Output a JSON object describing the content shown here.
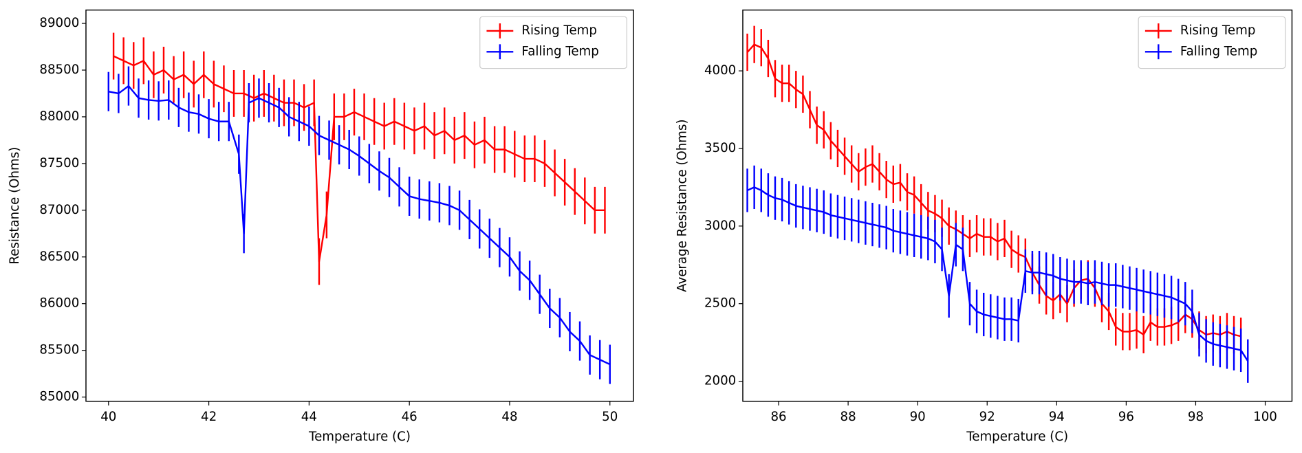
{
  "chart_data": [
    {
      "type": "errorbar_line",
      "xlabel": "Temperature (C)",
      "ylabel": "Resistance (Ohms)",
      "xlim": [
        39.55,
        50.47
      ],
      "ylim": [
        84955,
        89143
      ],
      "xticks": [
        40,
        42,
        44,
        46,
        48,
        50
      ],
      "yticks": [
        85000,
        85500,
        86000,
        86500,
        87000,
        87500,
        88000,
        88500,
        89000
      ],
      "legend": "upper right",
      "series": [
        {
          "name": "Rising Temp",
          "color": "#ff0000",
          "error": 250,
          "x": [
            40.1,
            40.3,
            40.5,
            40.7,
            40.9,
            41.1,
            41.3,
            41.5,
            41.7,
            41.9,
            42.1,
            42.3,
            42.5,
            42.7,
            42.9,
            43.1,
            43.3,
            43.5,
            43.7,
            43.9,
            44.1,
            44.2,
            44.35,
            44.5,
            44.7,
            44.9,
            45.1,
            45.3,
            45.5,
            45.7,
            45.9,
            46.1,
            46.3,
            46.5,
            46.7,
            46.9,
            47.1,
            47.3,
            47.5,
            47.7,
            47.9,
            48.1,
            48.3,
            48.5,
            48.7,
            48.9,
            49.1,
            49.3,
            49.5,
            49.7,
            49.9
          ],
          "values": [
            88650,
            88600,
            88550,
            88600,
            88450,
            88500,
            88400,
            88450,
            88350,
            88450,
            88350,
            88300,
            88250,
            88250,
            88200,
            88250,
            88200,
            88150,
            88150,
            88100,
            88150,
            86450,
            86950,
            88000,
            88000,
            88050,
            88000,
            87950,
            87900,
            87950,
            87900,
            87850,
            87900,
            87800,
            87850,
            87750,
            87800,
            87700,
            87750,
            87650,
            87650,
            87600,
            87550,
            87550,
            87500,
            87400,
            87300,
            87200,
            87100,
            87000,
            87000
          ]
        },
        {
          "name": "Falling Temp",
          "color": "#0000ff",
          "error": 210,
          "x": [
            40.0,
            40.2,
            40.4,
            40.6,
            40.8,
            41.0,
            41.2,
            41.4,
            41.6,
            41.8,
            42.0,
            42.2,
            42.4,
            42.6,
            42.7,
            42.8,
            43.0,
            43.2,
            43.4,
            43.6,
            43.8,
            44.0,
            44.2,
            44.4,
            44.6,
            44.8,
            45.0,
            45.2,
            45.4,
            45.6,
            45.8,
            46.0,
            46.2,
            46.4,
            46.6,
            46.8,
            47.0,
            47.2,
            47.4,
            47.6,
            47.8,
            48.0,
            48.2,
            48.4,
            48.6,
            48.8,
            49.0,
            49.2,
            49.4,
            49.6,
            49.8,
            50.0
          ],
          "values": [
            88270,
            88250,
            88330,
            88200,
            88180,
            88170,
            88180,
            88100,
            88050,
            88030,
            87980,
            87950,
            87950,
            87600,
            86750,
            88150,
            88200,
            88150,
            88100,
            88000,
            87950,
            87900,
            87800,
            87750,
            87700,
            87650,
            87580,
            87500,
            87420,
            87350,
            87250,
            87150,
            87120,
            87100,
            87080,
            87050,
            87000,
            86900,
            86800,
            86700,
            86600,
            86500,
            86350,
            86250,
            86100,
            85950,
            85850,
            85700,
            85600,
            85450,
            85400,
            85350
          ]
        }
      ]
    },
    {
      "type": "errorbar_line",
      "xlabel": "Temperature (C)",
      "ylabel": "Average Resistance (Ohms)",
      "xlim": [
        84.97,
        100.77
      ],
      "ylim": [
        1871,
        4392
      ],
      "xticks": [
        86,
        88,
        90,
        92,
        94,
        96,
        98,
        100
      ],
      "yticks": [
        2000,
        2500,
        3000,
        3500,
        4000
      ],
      "legend": "upper right",
      "series": [
        {
          "name": "Rising Temp",
          "color": "#ff0000",
          "error": 120,
          "x": [
            85.1,
            85.3,
            85.5,
            85.7,
            85.9,
            86.1,
            86.3,
            86.5,
            86.7,
            86.9,
            87.1,
            87.3,
            87.5,
            87.7,
            87.9,
            88.1,
            88.3,
            88.5,
            88.7,
            88.9,
            89.1,
            89.3,
            89.5,
            89.7,
            89.9,
            90.1,
            90.3,
            90.5,
            90.7,
            90.9,
            91.1,
            91.3,
            91.5,
            91.7,
            91.9,
            92.1,
            92.3,
            92.5,
            92.7,
            92.9,
            93.1,
            93.3,
            93.5,
            93.7,
            93.9,
            94.1,
            94.3,
            94.5,
            94.7,
            94.9,
            95.1,
            95.3,
            95.5,
            95.7,
            95.9,
            96.1,
            96.3,
            96.5,
            96.7,
            96.9,
            97.1,
            97.3,
            97.5,
            97.7,
            97.9,
            98.1,
            98.3,
            98.5,
            98.7,
            98.9,
            99.1,
            99.3
          ],
          "values": [
            4120,
            4170,
            4150,
            4080,
            3950,
            3920,
            3920,
            3880,
            3850,
            3750,
            3650,
            3620,
            3550,
            3500,
            3450,
            3400,
            3350,
            3380,
            3400,
            3350,
            3300,
            3270,
            3280,
            3220,
            3200,
            3150,
            3100,
            3080,
            3050,
            3000,
            2980,
            2950,
            2920,
            2950,
            2930,
            2930,
            2900,
            2920,
            2850,
            2820,
            2800,
            2700,
            2620,
            2550,
            2520,
            2560,
            2500,
            2600,
            2650,
            2660,
            2600,
            2500,
            2450,
            2350,
            2320,
            2320,
            2330,
            2300,
            2380,
            2350,
            2350,
            2360,
            2380,
            2430,
            2400,
            2330,
            2300,
            2310,
            2300,
            2320,
            2300,
            2290
          ]
        },
        {
          "name": "Falling Temp",
          "color": "#0000ff",
          "error": 140,
          "x": [
            85.1,
            85.3,
            85.5,
            85.7,
            85.9,
            86.1,
            86.3,
            86.5,
            86.7,
            86.9,
            87.1,
            87.3,
            87.5,
            87.7,
            87.9,
            88.1,
            88.3,
            88.5,
            88.7,
            88.9,
            89.1,
            89.3,
            89.5,
            89.7,
            89.9,
            90.1,
            90.3,
            90.5,
            90.7,
            90.9,
            91.1,
            91.3,
            91.5,
            91.7,
            91.9,
            92.1,
            92.3,
            92.5,
            92.7,
            92.9,
            93.1,
            93.3,
            93.5,
            93.7,
            93.9,
            94.1,
            94.3,
            94.5,
            94.7,
            94.9,
            95.1,
            95.3,
            95.5,
            95.7,
            95.9,
            96.1,
            96.3,
            96.5,
            96.7,
            96.9,
            97.1,
            97.3,
            97.5,
            97.7,
            97.9,
            98.1,
            98.3,
            98.5,
            98.7,
            98.9,
            99.1,
            99.3,
            99.5
          ],
          "values": [
            3230,
            3250,
            3230,
            3200,
            3180,
            3170,
            3150,
            3130,
            3120,
            3110,
            3100,
            3090,
            3070,
            3060,
            3050,
            3040,
            3030,
            3020,
            3010,
            3000,
            2990,
            2970,
            2960,
            2950,
            2940,
            2930,
            2920,
            2900,
            2850,
            2550,
            2880,
            2850,
            2500,
            2450,
            2430,
            2420,
            2410,
            2400,
            2400,
            2390,
            2710,
            2700,
            2700,
            2690,
            2680,
            2660,
            2650,
            2640,
            2640,
            2630,
            2640,
            2630,
            2620,
            2620,
            2610,
            2600,
            2590,
            2580,
            2570,
            2560,
            2550,
            2540,
            2520,
            2500,
            2450,
            2300,
            2260,
            2240,
            2230,
            2220,
            2210,
            2200,
            2130
          ]
        }
      ]
    }
  ]
}
